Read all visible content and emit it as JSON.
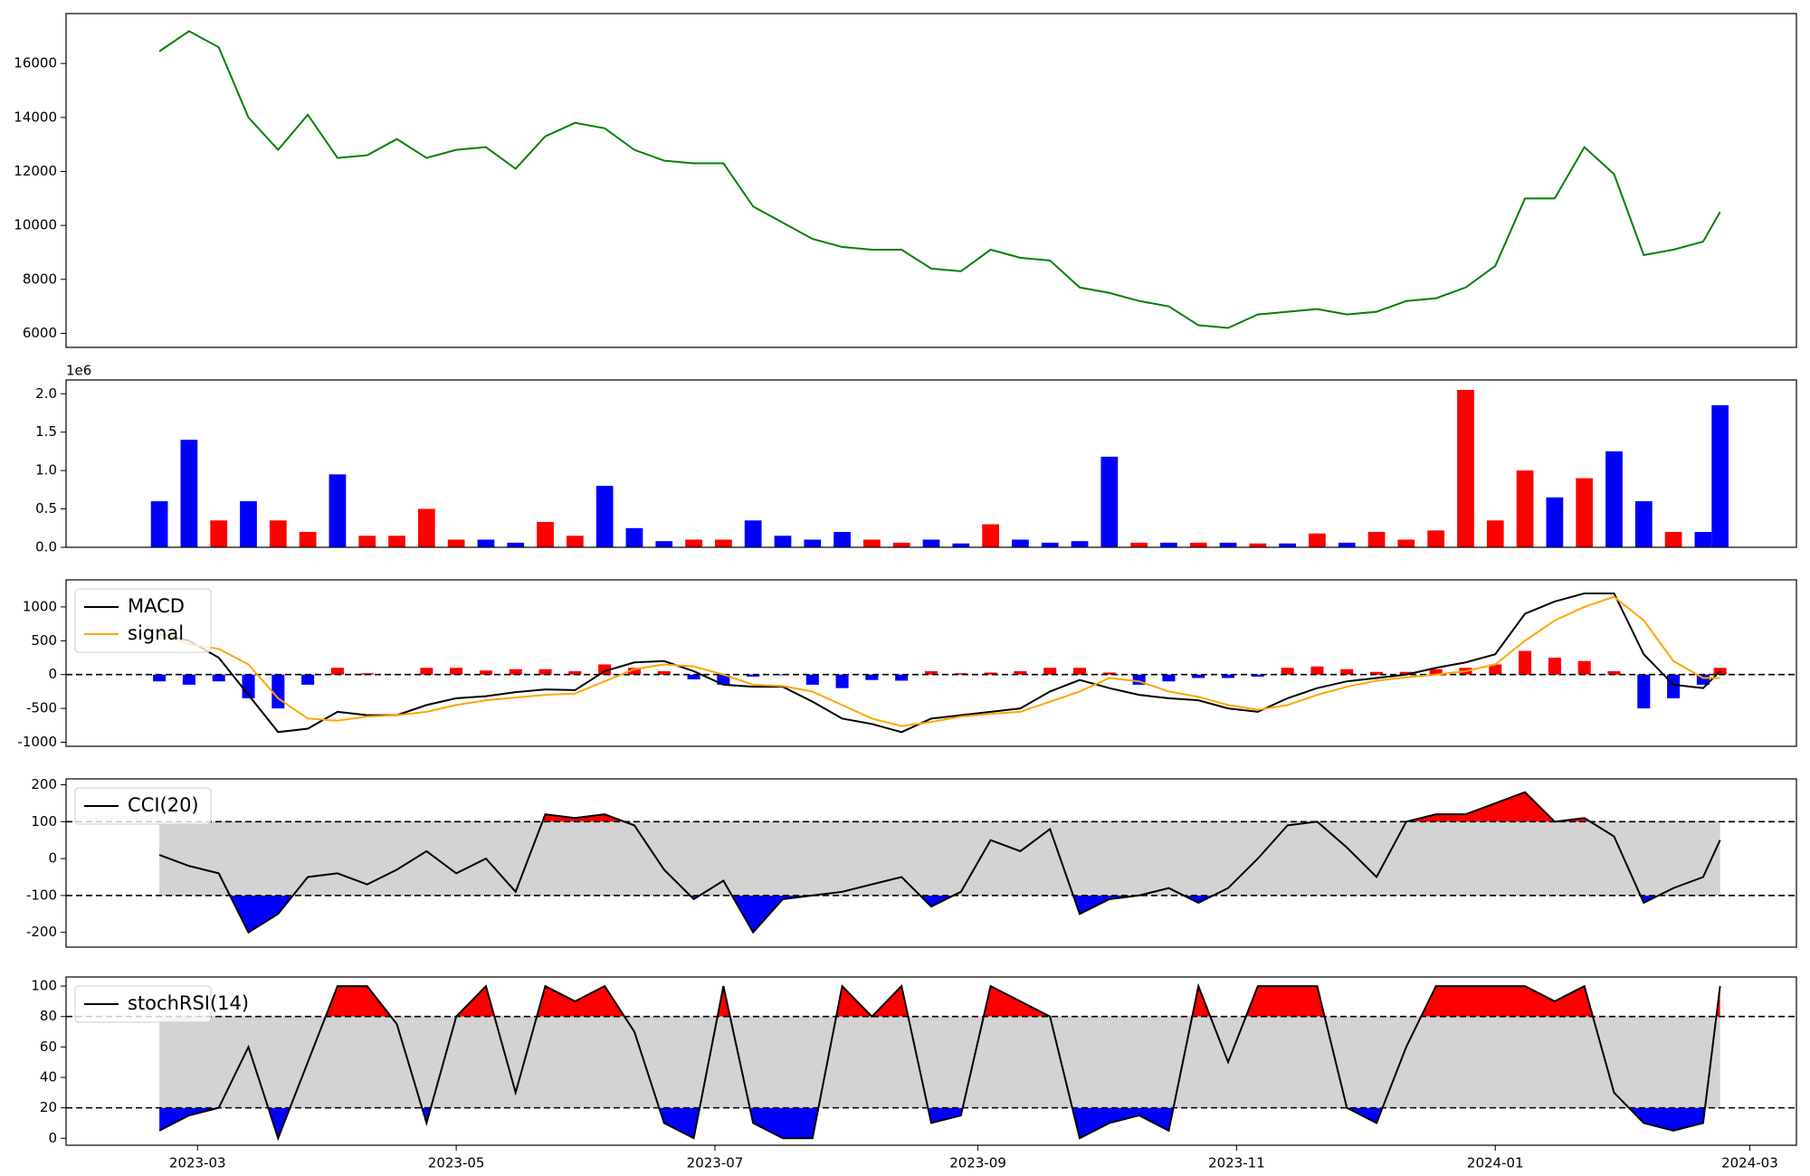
{
  "chart_data": [
    {
      "type": "line",
      "x": [
        "2023-02-20",
        "2023-02-27",
        "2023-03-06",
        "2023-03-13",
        "2023-03-20",
        "2023-03-27",
        "2023-04-03",
        "2023-04-10",
        "2023-04-17",
        "2023-04-24",
        "2023-05-01",
        "2023-05-08",
        "2023-05-15",
        "2023-05-22",
        "2023-05-29",
        "2023-06-05",
        "2023-06-12",
        "2023-06-19",
        "2023-06-26",
        "2023-07-03",
        "2023-07-10",
        "2023-07-17",
        "2023-07-24",
        "2023-07-31",
        "2023-08-07",
        "2023-08-14",
        "2023-08-21",
        "2023-08-28",
        "2023-09-04",
        "2023-09-11",
        "2023-09-18",
        "2023-09-25",
        "2023-10-02",
        "2023-10-09",
        "2023-10-16",
        "2023-10-23",
        "2023-10-30",
        "2023-11-06",
        "2023-11-13",
        "2023-11-20",
        "2023-11-27",
        "2023-12-04",
        "2023-12-11",
        "2023-12-18",
        "2023-12-25",
        "2024-01-01",
        "2024-01-08",
        "2024-01-15",
        "2024-01-22",
        "2024-01-29",
        "2024-02-05",
        "2024-02-12",
        "2024-02-19",
        "2024-02-23"
      ],
      "series": [
        {
          "color": "green",
          "values": [
            16450,
            17200,
            16600,
            14000,
            12800,
            14100,
            12500,
            12600,
            13200,
            12500,
            12800,
            12900,
            12100,
            13300,
            13800,
            13600,
            12800,
            12400,
            12300,
            12300,
            10700,
            10100,
            9500,
            9200,
            9100,
            9100,
            8400,
            8300,
            9100,
            8800,
            8700,
            7700,
            7500,
            7200,
            7000,
            6300,
            6200,
            6700,
            6800,
            6900,
            6700,
            6800,
            7200,
            7300,
            7700,
            8500,
            11000,
            11000,
            12900,
            11900,
            8900,
            9100,
            9400,
            10500
          ]
        }
      ],
      "xlim": [
        "2023-01-29",
        "2024-03-12"
      ],
      "ylim": [
        5480,
        17850
      ],
      "yticks": [
        6000,
        8000,
        10000,
        12000,
        14000,
        16000
      ]
    },
    {
      "type": "bar",
      "x": [
        "2023-02-20",
        "2023-02-27",
        "2023-03-06",
        "2023-03-13",
        "2023-03-20",
        "2023-03-27",
        "2023-04-03",
        "2023-04-10",
        "2023-04-17",
        "2023-04-24",
        "2023-05-01",
        "2023-05-08",
        "2023-05-15",
        "2023-05-22",
        "2023-05-29",
        "2023-06-05",
        "2023-06-12",
        "2023-06-19",
        "2023-06-26",
        "2023-07-03",
        "2023-07-10",
        "2023-07-17",
        "2023-07-24",
        "2023-07-31",
        "2023-08-07",
        "2023-08-14",
        "2023-08-21",
        "2023-08-28",
        "2023-09-04",
        "2023-09-11",
        "2023-09-18",
        "2023-09-25",
        "2023-10-02",
        "2023-10-09",
        "2023-10-16",
        "2023-10-23",
        "2023-10-30",
        "2023-11-06",
        "2023-11-13",
        "2023-11-20",
        "2023-11-27",
        "2023-12-04",
        "2023-12-11",
        "2023-12-18",
        "2023-12-25",
        "2024-01-01",
        "2024-01-08",
        "2024-01-15",
        "2024-01-22",
        "2024-01-29",
        "2024-02-05",
        "2024-02-12",
        "2024-02-19",
        "2024-02-23"
      ],
      "values": [
        0.6,
        1.4,
        0.35,
        0.6,
        0.35,
        0.2,
        0.95,
        0.15,
        0.15,
        0.5,
        0.1,
        0.1,
        0.06,
        0.33,
        0.15,
        0.8,
        0.25,
        0.08,
        0.1,
        0.1,
        0.35,
        0.15,
        0.1,
        0.2,
        0.1,
        0.06,
        0.1,
        0.05,
        0.3,
        0.1,
        0.06,
        0.08,
        1.18,
        0.06,
        0.06,
        0.06,
        0.06,
        0.05,
        0.05,
        0.18,
        0.06,
        0.2,
        0.1,
        0.22,
        2.05,
        0.35,
        1.0,
        0.65,
        0.9,
        1.25,
        0.6,
        0.2,
        0.2,
        1.85
      ],
      "colors": [
        "blue",
        "blue",
        "red",
        "blue",
        "red",
        "red",
        "blue",
        "red",
        "red",
        "red",
        "red",
        "blue",
        "blue",
        "red",
        "red",
        "blue",
        "blue",
        "blue",
        "red",
        "red",
        "blue",
        "blue",
        "blue",
        "blue",
        "red",
        "red",
        "blue",
        "blue",
        "red",
        "blue",
        "blue",
        "blue",
        "blue",
        "red",
        "blue",
        "red",
        "blue",
        "red",
        "blue",
        "red",
        "blue",
        "red",
        "red",
        "red",
        "red",
        "red",
        "red",
        "blue",
        "red",
        "blue",
        "blue",
        "red",
        "blue",
        "blue"
      ],
      "offset_text": "1e6",
      "xlim": [
        "2023-01-29",
        "2024-03-12"
      ],
      "ylim": [
        0,
        2.18
      ],
      "yticks": [
        {
          "value": 0,
          "label": "0.0"
        },
        0.5,
        {
          "value": 1,
          "label": "1.0"
        },
        1.5,
        {
          "value": 2,
          "label": "2.0"
        }
      ]
    },
    {
      "type": "macd",
      "x": [
        "2023-02-20",
        "2023-02-27",
        "2023-03-06",
        "2023-03-13",
        "2023-03-20",
        "2023-03-27",
        "2023-04-03",
        "2023-04-10",
        "2023-04-17",
        "2023-04-24",
        "2023-05-01",
        "2023-05-08",
        "2023-05-15",
        "2023-05-22",
        "2023-05-29",
        "2023-06-05",
        "2023-06-12",
        "2023-06-19",
        "2023-06-26",
        "2023-07-03",
        "2023-07-10",
        "2023-07-17",
        "2023-07-24",
        "2023-07-31",
        "2023-08-07",
        "2023-08-14",
        "2023-08-21",
        "2023-08-28",
        "2023-09-04",
        "2023-09-11",
        "2023-09-18",
        "2023-09-25",
        "2023-10-02",
        "2023-10-09",
        "2023-10-16",
        "2023-10-23",
        "2023-10-30",
        "2023-11-06",
        "2023-11-13",
        "2023-11-20",
        "2023-11-27",
        "2023-12-04",
        "2023-12-11",
        "2023-12-18",
        "2023-12-25",
        "2024-01-01",
        "2024-01-08",
        "2024-01-15",
        "2024-01-22",
        "2024-01-29",
        "2024-02-05",
        "2024-02-12",
        "2024-02-19",
        "2024-02-23"
      ],
      "series": [
        {
          "name": "MACD",
          "color": "black",
          "values": [
            600,
            500,
            250,
            -300,
            -850,
            -800,
            -550,
            -600,
            -600,
            -450,
            -350,
            -320,
            -260,
            -220,
            -230,
            50,
            180,
            200,
            50,
            -150,
            -180,
            -180,
            -400,
            -650,
            -730,
            -850,
            -650,
            -600,
            -550,
            -500,
            -250,
            -80,
            -200,
            -300,
            -350,
            -380,
            -500,
            -550,
            -350,
            -200,
            -100,
            -50,
            0,
            100,
            180,
            300,
            900,
            1080,
            1200,
            1200,
            300,
            -150,
            -200,
            50
          ]
        },
        {
          "name": "signal",
          "color": "orange",
          "values": [
            600,
            450,
            380,
            150,
            -350,
            -650,
            -680,
            -620,
            -600,
            -550,
            -450,
            -380,
            -340,
            -300,
            -280,
            -100,
            80,
            150,
            120,
            0,
            -150,
            -170,
            -250,
            -450,
            -650,
            -760,
            -700,
            -620,
            -580,
            -550,
            -400,
            -250,
            -50,
            -100,
            -250,
            -330,
            -450,
            -520,
            -450,
            -300,
            -180,
            -90,
            -40,
            0,
            50,
            150,
            500,
            800,
            1000,
            1150,
            800,
            200,
            -50,
            -50
          ]
        }
      ],
      "histogram": {
        "values": [
          -100,
          -150,
          -100,
          -350,
          -500,
          -150,
          100,
          20,
          0,
          100,
          100,
          60,
          80,
          80,
          50,
          150,
          100,
          50,
          -70,
          -150,
          -30,
          -10,
          -150,
          -200,
          -80,
          -90,
          50,
          20,
          30,
          50,
          100,
          100,
          30,
          -150,
          -100,
          -50,
          -50,
          -30,
          100,
          120,
          80,
          40,
          40,
          80,
          100,
          150,
          350,
          250,
          200,
          50,
          -500,
          -350,
          -150,
          100
        ],
        "pos_color": "red",
        "neg_color": "blue"
      },
      "baseline": 0,
      "legend": "upper left",
      "xlim": [
        "2023-01-29",
        "2024-03-12"
      ],
      "ylim": [
        -1060,
        1400
      ],
      "yticks": [
        -1000,
        -500,
        0,
        500,
        1000
      ]
    },
    {
      "type": "band",
      "x": [
        "2023-02-20",
        "2023-02-27",
        "2023-03-06",
        "2023-03-13",
        "2023-03-20",
        "2023-03-27",
        "2023-04-03",
        "2023-04-10",
        "2023-04-17",
        "2023-04-24",
        "2023-05-01",
        "2023-05-08",
        "2023-05-15",
        "2023-05-22",
        "2023-05-29",
        "2023-06-05",
        "2023-06-12",
        "2023-06-19",
        "2023-06-26",
        "2023-07-03",
        "2023-07-10",
        "2023-07-17",
        "2023-07-24",
        "2023-07-31",
        "2023-08-07",
        "2023-08-14",
        "2023-08-21",
        "2023-08-28",
        "2023-09-04",
        "2023-09-11",
        "2023-09-18",
        "2023-09-25",
        "2023-10-02",
        "2023-10-09",
        "2023-10-16",
        "2023-10-23",
        "2023-10-30",
        "2023-11-06",
        "2023-11-13",
        "2023-11-20",
        "2023-11-27",
        "2023-12-04",
        "2023-12-11",
        "2023-12-18",
        "2023-12-25",
        "2024-01-01",
        "2024-01-08",
        "2024-01-15",
        "2024-01-22",
        "2024-01-29",
        "2024-02-05",
        "2024-02-12",
        "2024-02-19",
        "2024-02-23"
      ],
      "series": [
        {
          "name": "CCI(20)",
          "color": "black",
          "values": [
            10,
            -20,
            -40,
            -200,
            -150,
            -50,
            -40,
            -70,
            -30,
            20,
            -40,
            0,
            -90,
            120,
            110,
            120,
            90,
            -30,
            -110,
            -60,
            -200,
            -110,
            -100,
            -90,
            -70,
            -50,
            -130,
            -90,
            50,
            20,
            80,
            -150,
            -110,
            -100,
            -80,
            -120,
            -80,
            0,
            90,
            100,
            30,
            -50,
            100,
            120,
            120,
            150,
            180,
            100,
            110,
            60,
            -120,
            -80,
            -50,
            50
          ]
        }
      ],
      "bands": [
        -100,
        100
      ],
      "band_color": "lightgray",
      "above_color": "red",
      "below_color": "blue",
      "legend": "upper left",
      "xlim": [
        "2023-01-29",
        "2024-03-12"
      ],
      "ylim": [
        -240,
        216
      ],
      "yticks": [
        -200,
        -100,
        0,
        100,
        200
      ]
    },
    {
      "type": "band",
      "x": [
        "2023-02-20",
        "2023-02-27",
        "2023-03-06",
        "2023-03-13",
        "2023-03-20",
        "2023-03-27",
        "2023-04-03",
        "2023-04-10",
        "2023-04-17",
        "2023-04-24",
        "2023-05-01",
        "2023-05-08",
        "2023-05-15",
        "2023-05-22",
        "2023-05-29",
        "2023-06-05",
        "2023-06-12",
        "2023-06-19",
        "2023-06-26",
        "2023-07-03",
        "2023-07-10",
        "2023-07-17",
        "2023-07-24",
        "2023-07-31",
        "2023-08-07",
        "2023-08-14",
        "2023-08-21",
        "2023-08-28",
        "2023-09-04",
        "2023-09-11",
        "2023-09-18",
        "2023-09-25",
        "2023-10-02",
        "2023-10-09",
        "2023-10-16",
        "2023-10-23",
        "2023-10-30",
        "2023-11-06",
        "2023-11-13",
        "2023-11-20",
        "2023-11-27",
        "2023-12-04",
        "2023-12-11",
        "2023-12-18",
        "2023-12-25",
        "2024-01-01",
        "2024-01-08",
        "2024-01-15",
        "2024-01-22",
        "2024-01-29",
        "2024-02-05",
        "2024-02-12",
        "2024-02-19",
        "2024-02-23"
      ],
      "series": [
        {
          "name": "stochRSI(14)",
          "color": "black",
          "values": [
            5,
            15,
            20,
            60,
            0,
            50,
            100,
            100,
            75,
            10,
            80,
            100,
            30,
            100,
            90,
            100,
            70,
            10,
            0,
            100,
            10,
            0,
            0,
            100,
            80,
            100,
            10,
            15,
            100,
            90,
            80,
            0,
            10,
            15,
            5,
            100,
            50,
            100,
            100,
            100,
            20,
            10,
            60,
            100,
            100,
            100,
            100,
            90,
            100,
            30,
            10,
            5,
            10,
            100
          ]
        }
      ],
      "bands": [
        20,
        80
      ],
      "band_color": "lightgray",
      "above_color": "red",
      "below_color": "blue",
      "legend": "upper left",
      "xlim": [
        "2023-01-29",
        "2024-03-12"
      ],
      "ylim": [
        -4.6,
        106
      ],
      "yticks": [
        0,
        20,
        40,
        60,
        80,
        100
      ],
      "xticks": [
        {
          "value": "2023-03-01",
          "label": "2023-03"
        },
        {
          "value": "2023-05-01",
          "label": "2023-05"
        },
        {
          "value": "2023-07-01",
          "label": "2023-07"
        },
        {
          "value": "2023-09-01",
          "label": "2023-09"
        },
        {
          "value": "2023-11-01",
          "label": "2023-11"
        },
        {
          "value": "2024-01-01",
          "label": "2024-01"
        },
        {
          "value": "2024-03-01",
          "label": "2024-03"
        }
      ]
    }
  ]
}
